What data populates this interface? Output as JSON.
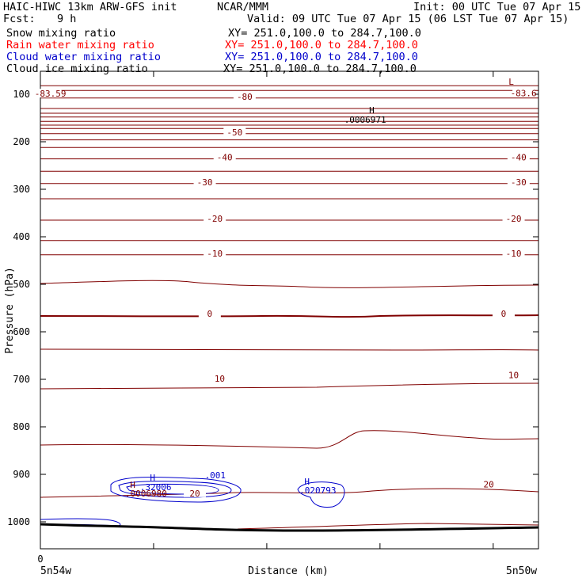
{
  "header": {
    "model_line": "HAIC-HIWC 13km ARW-GFS init",
    "org": "NCAR/MMM",
    "init": "Init: 00 UTC Tue 07 Apr 15",
    "fcst_label": "Fcst:",
    "fcst_value": "9 h",
    "valid": "Valid: 09 UTC Tue 07 Apr 15 (06 LST Tue 07 Apr 15)",
    "fields": [
      {
        "name": "Snow mixing ratio",
        "xy": "XY= 251.0,100.0 to 284.7,100.0",
        "color": "#000000"
      },
      {
        "name": "Rain water mixing ratio",
        "xy": "XY= 251.0,100.0 to 284.7,100.0",
        "color": "#ff0000"
      },
      {
        "name": "Cloud water mixing ratio",
        "xy": "XY= 251.0,100.0 to 284.7,100.0",
        "color": "#0000cc"
      },
      {
        "name": "Cloud ice mixing ratio",
        "xy": "XY= 251.0,100.0 to 284.7,100.0",
        "color": "#000000"
      }
    ]
  },
  "chart_data": {
    "type": "contour",
    "ylabel": "Pressure (hPa)",
    "xlabel": "Distance (km)",
    "x_left_label": "5n54w",
    "x_right_label": "5n50w",
    "x_zero_label": "0",
    "yticks": [
      100,
      200,
      300,
      400,
      500,
      600,
      700,
      800,
      900,
      1000
    ],
    "ylim": [
      50,
      1050
    ],
    "temperature_contour_color": "#800000",
    "temperature_labels": [
      {
        "text": "-80",
        "x": 0.41,
        "p": 108
      },
      {
        "text": "-83.59",
        "x": 0.02,
        "p": 102
      },
      {
        "text": "-83.6",
        "x": 0.97,
        "p": 101
      },
      {
        "text": "-50",
        "x": 0.39,
        "p": 183
      },
      {
        "text": "-40",
        "x": 0.37,
        "p": 236
      },
      {
        "text": "-40",
        "x": 0.96,
        "p": 236
      },
      {
        "text": "-30",
        "x": 0.33,
        "p": 288
      },
      {
        "text": "-30",
        "x": 0.96,
        "p": 288
      },
      {
        "text": "-20",
        "x": 0.35,
        "p": 365
      },
      {
        "text": "-20",
        "x": 0.95,
        "p": 365
      },
      {
        "text": "-10",
        "x": 0.35,
        "p": 438
      },
      {
        "text": "-10",
        "x": 0.95,
        "p": 438
      },
      {
        "text": "0",
        "x": 0.34,
        "p": 565
      },
      {
        "text": "0",
        "x": 0.93,
        "p": 565
      },
      {
        "text": "10",
        "x": 0.36,
        "p": 702
      },
      {
        "text": "10",
        "x": 0.95,
        "p": 694
      },
      {
        "text": "20",
        "x": 0.31,
        "p": 943
      },
      {
        "text": "20",
        "x": 0.9,
        "p": 924
      }
    ],
    "extrema_labels": [
      {
        "text": "L",
        "x": 0.94,
        "p": 80,
        "color": "#800000"
      },
      {
        "text": "H",
        "x": 0.66,
        "p": 140,
        "color": "#000000"
      },
      {
        "text": ".0006971",
        "x": 0.61,
        "p": 160,
        "color": "#000000"
      },
      {
        "text": "H",
        "x": 0.22,
        "p": 913,
        "color": "#0000cc"
      },
      {
        "text": ".32006",
        "x": 0.2,
        "p": 933,
        "color": "#0000cc"
      },
      {
        "text": ".001",
        "x": 0.33,
        "p": 908,
        "color": "#0000cc"
      },
      {
        "text": "H",
        "x": 0.18,
        "p": 928,
        "color": "#800000"
      },
      {
        "text": ".0006980",
        "x": 0.17,
        "p": 947,
        "color": "#800000"
      },
      {
        "text": "H",
        "x": 0.53,
        "p": 922,
        "color": "#0000cc"
      },
      {
        "text": ".020793",
        "x": 0.52,
        "p": 940,
        "color": "#0000cc"
      }
    ]
  }
}
